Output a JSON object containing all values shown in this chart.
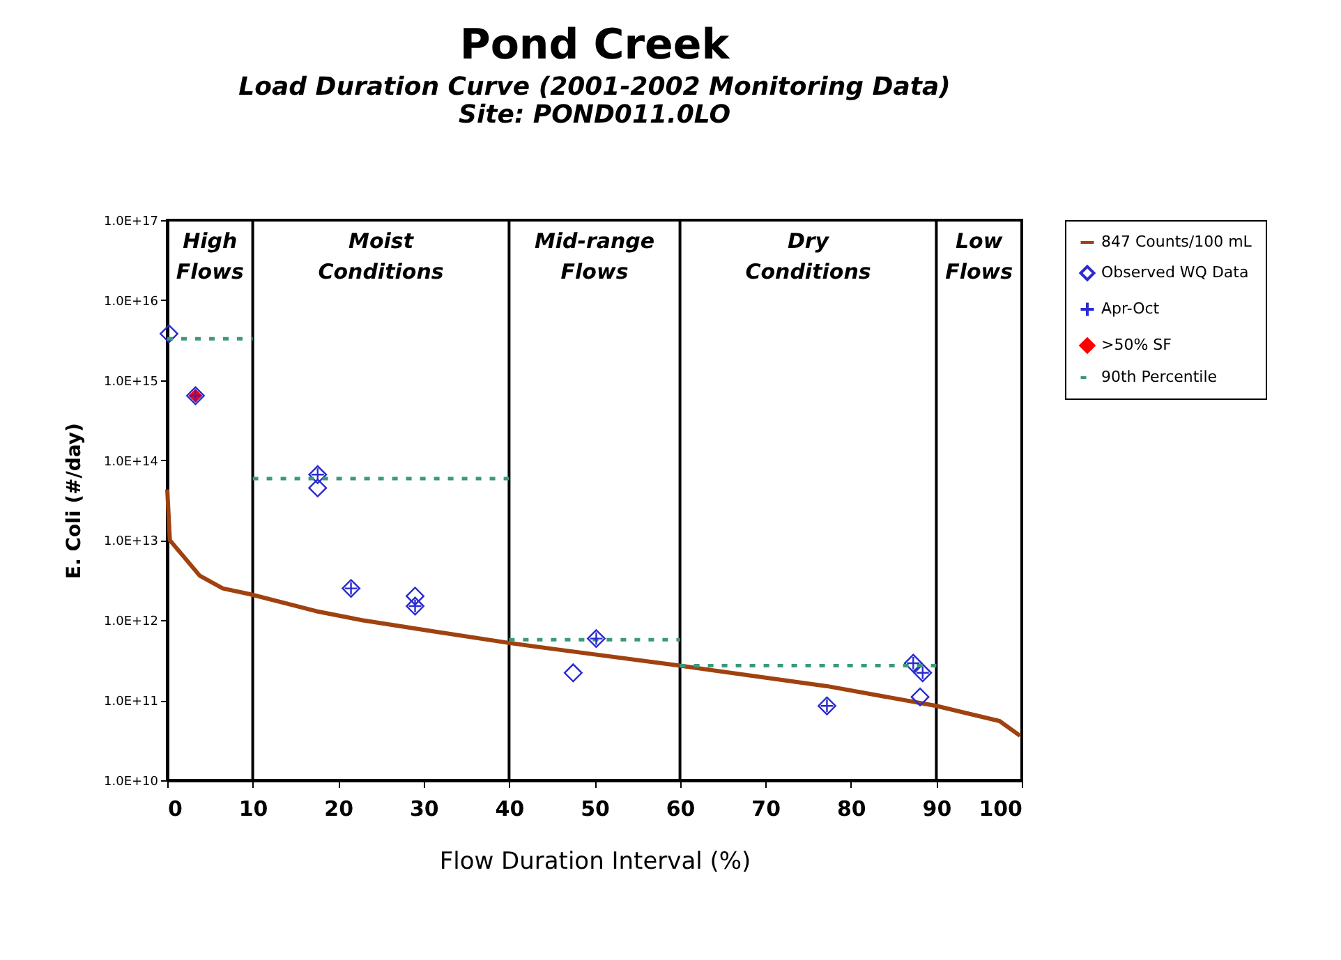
{
  "chart_data": {
    "type": "scatter",
    "title": "Pond Creek",
    "subtitle": [
      "Load Duration Curve  (2001-2002 Monitoring Data)",
      "Site:  POND011.0LO"
    ],
    "xlabel": "Flow Duration Interval (%)",
    "ylabel": "E. Coli (#/day)",
    "log": "y",
    "xlim": [
      0,
      100
    ],
    "xticks": [
      0,
      10,
      20,
      30,
      40,
      50,
      60,
      70,
      80,
      90,
      100
    ],
    "ylim": [
      10000000000.0,
      1e+17
    ],
    "yticks": [
      {
        "value": 10000000000.0,
        "label": "1.0E+10"
      },
      {
        "value": 100000000000.0,
        "label": "1.0E+11"
      },
      {
        "value": 1000000000000.0,
        "label": "1.0E+12"
      },
      {
        "value": 10000000000000.0,
        "label": "1.0E+13"
      },
      {
        "value": 100000000000000.0,
        "label": "1.0E+14"
      },
      {
        "value": 1000000000000000.0,
        "label": "1.0E+15"
      },
      {
        "value": 1e+16,
        "label": "1.0E+16"
      },
      {
        "value": 1e+17,
        "label": "1.0E+17"
      }
    ],
    "grid": false,
    "legend": "right",
    "ref_lines": [
      {
        "axis": "x",
        "value": 10
      },
      {
        "axis": "x",
        "value": 40
      },
      {
        "axis": "x",
        "value": 60
      },
      {
        "axis": "x",
        "value": 90
      }
    ],
    "annotations": [
      "High Flows",
      "Moist Conditions",
      "Mid-range Flows",
      "Dry Conditions",
      "Low Flows"
    ],
    "series": [
      {
        "name": "847 Counts/100 mL",
        "type": "line",
        "color": "#a0420f",
        "line_style": "solid",
        "x": [
          0,
          0.3,
          3.8,
          6.5,
          9.8,
          17.4,
          22.8,
          31,
          40,
          45.7,
          60,
          77.2,
          90,
          97.4,
          99.8
        ],
        "values": [
          43000000000000.0,
          10000000000000.0,
          3600000000000.0,
          2500000000000.0,
          2100000000000.0,
          1300000000000.0,
          1000000000000.0,
          730000000000.0,
          520000000000.0,
          430000000000.0,
          270000000000.0,
          150000000000.0,
          85000000000.0,
          55000000000.0,
          36000000000.0
        ]
      },
      {
        "name": "Observed WQ Data",
        "color": "#2a2ad0",
        "marker": "diamond",
        "x": [
          0.2,
          3.3,
          17.6,
          17.6,
          21.5,
          29,
          29,
          47.5,
          50.2,
          77.2,
          87.3,
          88.4,
          88.1
        ],
        "values": [
          3800000000000000.0,
          640000000000000.0,
          66000000000000.0,
          45000000000000.0,
          2500000000000.0,
          2000000000000.0,
          1500000000000.0,
          220000000000.0,
          590000000000.0,
          85000000000.0,
          290000000000.0,
          220000000000.0,
          110000000000.0
        ]
      },
      {
        "name": "Apr-Oct",
        "color": "#2a2ad0",
        "marker": "cross",
        "x": [
          3.3,
          17.6,
          21.5,
          29,
          50.2,
          77.2,
          87.3,
          88.4
        ],
        "values": [
          640000000000000.0,
          66000000000000.0,
          2500000000000.0,
          1500000000000.0,
          590000000000.0,
          85000000000.0,
          290000000000.0,
          220000000000.0
        ]
      },
      {
        "name": ">50% SF",
        "color": "#ff0000",
        "marker": "diamond",
        "x": [
          3.3
        ],
        "values": [
          640000000000000.0
        ]
      },
      {
        "name": "90th Percentile",
        "type": "line",
        "color": "#3a9a7a",
        "line_style": "dashed",
        "x": [
          0,
          10,
          null,
          10,
          40,
          null,
          40,
          60,
          null,
          60,
          90
        ],
        "values": [
          3300000000000000.0,
          3300000000000000.0,
          null,
          59000000000000.0,
          59000000000000.0,
          null,
          570000000000.0,
          570000000000.0,
          null,
          270000000000.0,
          270000000000.0
        ]
      }
    ]
  }
}
